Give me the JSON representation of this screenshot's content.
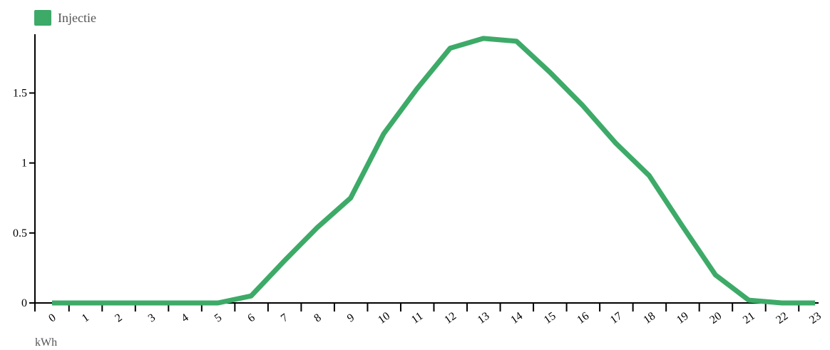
{
  "chart_data": {
    "type": "line",
    "legend": {
      "label": "Injectie",
      "position": "top-left"
    },
    "y_unit": "kWh",
    "x": [
      "0",
      "1",
      "2",
      "3",
      "4",
      "5",
      "6",
      "7",
      "8",
      "9",
      "10",
      "11",
      "12",
      "13",
      "14",
      "15",
      "16",
      "17",
      "18",
      "19",
      "20",
      "21",
      "22",
      "23"
    ],
    "y_ticks": [
      {
        "value": 0,
        "label": "0"
      },
      {
        "value": 0.5,
        "label": "0.5"
      },
      {
        "value": 1,
        "label": "1"
      },
      {
        "value": 1.5,
        "label": "1.5"
      }
    ],
    "ylim": [
      0,
      1.92
    ],
    "grid": false,
    "series": [
      {
        "name": "Injectie",
        "color": "#3daa68",
        "values": [
          0,
          0,
          0,
          0,
          0,
          0,
          0.05,
          0.3,
          0.54,
          0.75,
          1.21,
          1.53,
          1.82,
          1.89,
          1.87,
          1.65,
          1.41,
          1.14,
          0.91,
          0.55,
          0.2,
          0.02,
          0,
          0
        ]
      }
    ]
  }
}
